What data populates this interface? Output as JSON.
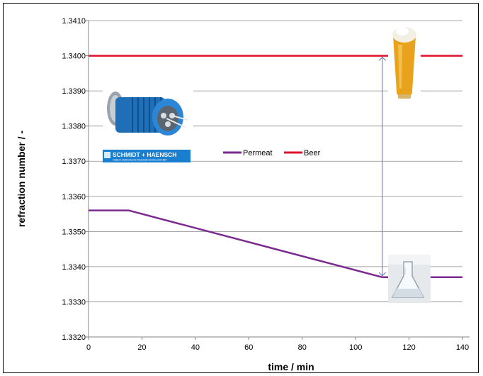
{
  "chart_data": {
    "type": "line",
    "xlabel": "time / min",
    "ylabel": "refraction number / -",
    "xlim": [
      0,
      140
    ],
    "ylim": [
      1.332,
      1.341
    ],
    "xticks": [
      0,
      20,
      40,
      60,
      80,
      100,
      120,
      140
    ],
    "yticks": [
      "1.3320",
      "1.3330",
      "1.3340",
      "1.3350",
      "1.3360",
      "1.3370",
      "1.3380",
      "1.3390",
      "1.3400",
      "1.3410"
    ],
    "grid": "horizontal",
    "legend_position": "center",
    "series": [
      {
        "name": "Permeat",
        "color": "#7b2a8f",
        "points": [
          [
            0,
            1.3356
          ],
          [
            15,
            1.3356
          ],
          [
            110,
            1.3337
          ],
          [
            140,
            1.3337
          ]
        ]
      },
      {
        "name": "Beer",
        "color": "#e0112b",
        "points": [
          [
            0,
            1.34
          ],
          [
            140,
            1.34
          ]
        ]
      }
    ],
    "annotations": [
      {
        "type": "double-arrow",
        "x": 110,
        "y_from": 1.3337,
        "y_to": 1.34,
        "color": "#5a74b8"
      }
    ]
  },
  "images": {
    "sensor": "refractometer-sensor-photo",
    "logo_text": "SCHMIDT + HAENSCH",
    "logo_subtext": "Optisch-elektronische Messinstrumente seit 1864",
    "beer_glass": "beer-glass-photo",
    "flask": "permeate-flask-photo"
  }
}
